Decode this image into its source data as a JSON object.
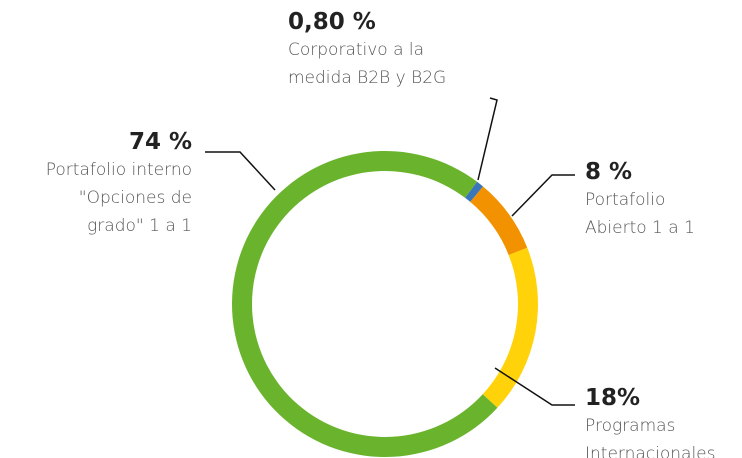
{
  "chart_data": {
    "type": "donut",
    "categories": [
      "Corporativo a la\nmedida B2B y B2G",
      "Portafolio\nAbierto 1 a 1",
      "Programas\nInternacionales",
      "Portafolio interno\n\"Opciones de\ngrado\" 1 a 1"
    ],
    "values": [
      0.8,
      8,
      18,
      74
    ],
    "value_labels": [
      "0,80 %",
      "8 %",
      "18%",
      "74 %"
    ],
    "colors": [
      "#3a76b8",
      "#f39200",
      "#ffd20a",
      "#6ab42d"
    ]
  }
}
